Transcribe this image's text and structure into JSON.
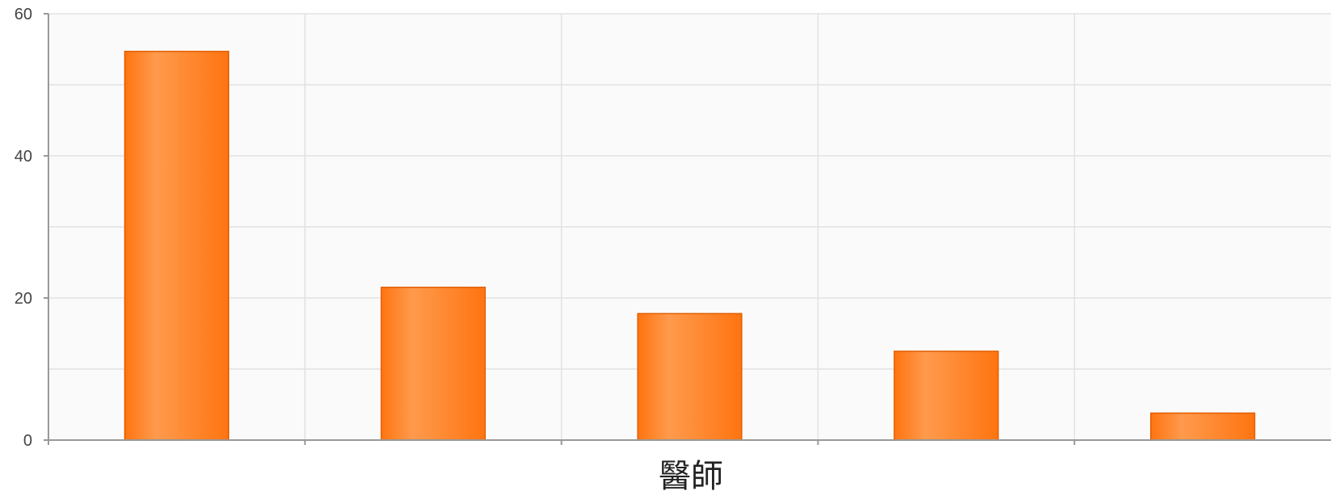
{
  "chart_data": {
    "type": "bar",
    "categories": [
      "",
      "",
      "",
      "",
      ""
    ],
    "values": [
      54.7,
      21.5,
      17.8,
      12.5,
      3.8
    ],
    "title": "",
    "xlabel": "醫師",
    "ylabel": "",
    "ylim": [
      0,
      60
    ],
    "yticks": [
      "0",
      "20",
      "40",
      "60"
    ],
    "grid": true,
    "legend": "none",
    "bar_color": "#ff7410",
    "bar_highlight": "#ff9a4d",
    "bar_edge": "#e25e00",
    "plot_background": "#fafafa"
  }
}
